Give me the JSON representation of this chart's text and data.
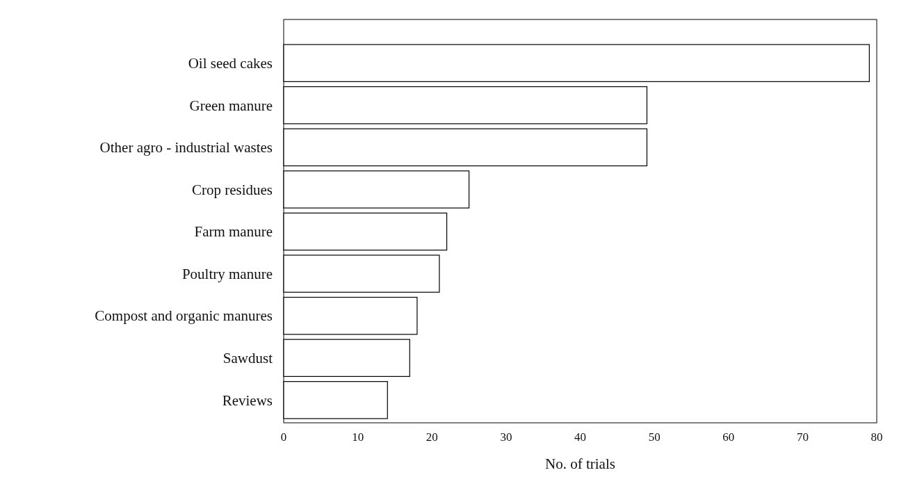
{
  "chart_data": {
    "type": "bar",
    "orientation": "horizontal",
    "xlabel": "No. of trials",
    "categories": [
      "Oil seed cakes",
      "Green manure",
      "Other agro - industrial wastes",
      "Crop residues",
      "Farm manure",
      "Poultry manure",
      "Compost and organic manures",
      "Sawdust",
      "Reviews"
    ],
    "values": [
      79,
      49,
      49,
      25,
      22,
      21,
      18,
      17,
      14
    ],
    "color": "#ffffff",
    "xlim": [
      0,
      80
    ],
    "xticks": [
      0,
      10,
      20,
      30,
      40,
      50,
      60,
      70,
      80
    ],
    "grid": false
  }
}
